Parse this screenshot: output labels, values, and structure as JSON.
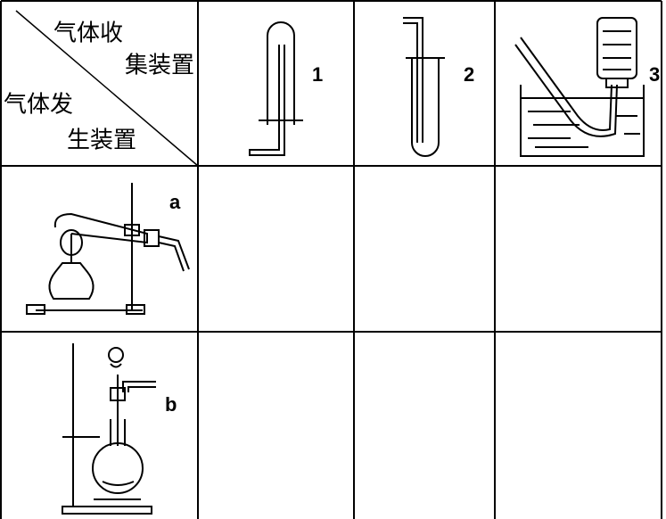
{
  "header_cell": {
    "top_label_line1": "气体收",
    "top_label_line2": "集装置",
    "bottom_label_line1": "气体发",
    "bottom_label_line2": "生装置"
  },
  "collection_devices": [
    "1",
    "2",
    "3"
  ],
  "generation_devices": [
    "a",
    "b"
  ]
}
